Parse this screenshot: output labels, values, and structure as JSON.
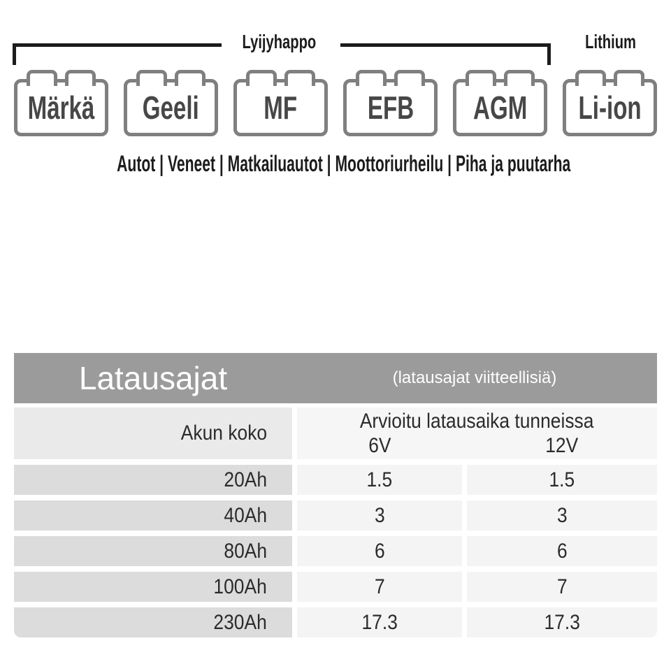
{
  "top": {
    "group_left_label": "Lyijyhappo",
    "group_right_label": "Lithium"
  },
  "batteries": [
    {
      "label": "Märkä"
    },
    {
      "label": "Geeli"
    },
    {
      "label": "MF"
    },
    {
      "label": "EFB"
    },
    {
      "label": "AGM"
    },
    {
      "label": "Li-ion"
    }
  ],
  "categories_line": "Autot | Veneet | Matkailuautot | Moottoriurheilu | Piha ja puutarha",
  "table": {
    "title": "Latausajat",
    "subtitle": "(latausajat viitteellisiä)",
    "col_battery_size": "Akun koko",
    "col_time_header": "Arvioitu latausaika tunneissa",
    "col_6v": "6V",
    "col_12v": "12V",
    "rows": [
      {
        "size": "20Ah",
        "v6": "1.5",
        "v12": "1.5"
      },
      {
        "size": "40Ah",
        "v6": "3",
        "v12": "3"
      },
      {
        "size": "80Ah",
        "v6": "6",
        "v12": "6"
      },
      {
        "size": "100Ah",
        "v6": "7",
        "v12": "7"
      },
      {
        "size": "230Ah",
        "v6": "17.3",
        "v12": "17.3"
      }
    ]
  },
  "colors": {
    "ink": "#1c1c1c",
    "battery-border": "#7f7f7f",
    "battery-label": "#474747",
    "table-title-bar": "#9b9b9b",
    "table-title-text": "#ffffff",
    "header-left-cell": "#eaeaea",
    "header-right-cell": "#f6f6f6",
    "row-label-cell": "#dcdcdc",
    "row-value-cell": "#f4f4f4",
    "table-text": "#2b2b2b"
  }
}
